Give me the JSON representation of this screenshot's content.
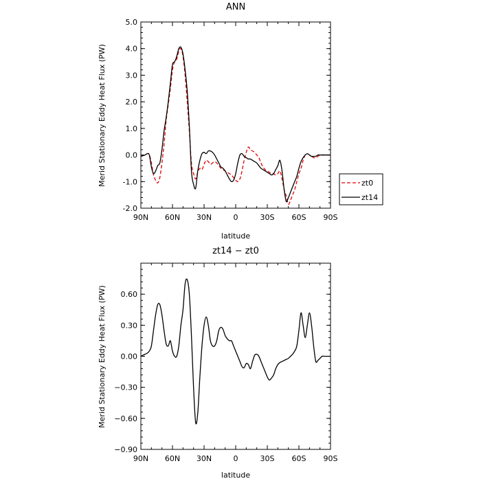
{
  "chart_data": [
    {
      "type": "line",
      "title": "ANN",
      "xlabel": "latitude",
      "ylabel": "Merid Stationary Eddy Heat Flux (PW)",
      "xlim": [
        90,
        -90
      ],
      "ylim": [
        -2.0,
        5.0
      ],
      "xticks": [
        90,
        60,
        30,
        0,
        -30,
        -60,
        -90
      ],
      "xtick_labels": [
        "90N",
        "60N",
        "30N",
        "0",
        "30S",
        "60S",
        "90S"
      ],
      "yticks": [
        -2,
        -1,
        0,
        1,
        2,
        3,
        4,
        5
      ],
      "ytick_labels": [
        "-2.0",
        "-1.0",
        "0.0",
        "1.0",
        "2.0",
        "3.0",
        "4.0",
        "5.0"
      ],
      "legend": {
        "placement": "right",
        "entries": [
          "zt0",
          "zt14"
        ]
      },
      "series": [
        {
          "name": "zt0",
          "color": "#e00000",
          "dash": "dashed",
          "x": [
            90,
            86,
            84,
            82,
            80,
            78,
            76,
            74,
            72,
            70,
            68,
            66,
            64,
            62,
            60,
            58,
            56,
            54,
            52,
            50,
            48,
            46,
            44,
            42,
            40,
            38,
            36,
            34,
            32,
            30,
            28,
            26,
            24,
            22,
            20,
            18,
            16,
            14,
            12,
            10,
            8,
            6,
            4,
            2,
            0,
            -2,
            -4,
            -6,
            -8,
            -10,
            -12,
            -14,
            -16,
            -18,
            -20,
            -22,
            -24,
            -26,
            -28,
            -30,
            -32,
            -34,
            -36,
            -38,
            -40,
            -42,
            -44,
            -46,
            -48,
            -50,
            -52,
            -54,
            -56,
            -58,
            -60,
            -62,
            -64,
            -66,
            -68,
            -70,
            -72,
            -74,
            -76,
            -78,
            -80,
            -82,
            -84,
            -86,
            -88,
            -90
          ],
          "y": [
            -0.05,
            0.0,
            0.05,
            0.02,
            -0.3,
            -0.75,
            -0.95,
            -1.05,
            -0.85,
            -0.3,
            0.4,
            1.3,
            1.9,
            2.5,
            3.2,
            3.5,
            3.6,
            3.9,
            4.0,
            3.7,
            3.0,
            2.0,
            0.9,
            -0.3,
            -0.7,
            -0.9,
            -0.65,
            -0.5,
            -0.55,
            -0.35,
            -0.2,
            -0.25,
            -0.35,
            -0.3,
            -0.25,
            -0.3,
            -0.4,
            -0.5,
            -0.55,
            -0.6,
            -0.65,
            -0.7,
            -0.75,
            -0.85,
            -0.95,
            -1.0,
            -0.9,
            -0.6,
            -0.2,
            0.1,
            0.3,
            0.2,
            0.15,
            0.1,
            0.0,
            -0.1,
            -0.3,
            -0.45,
            -0.55,
            -0.6,
            -0.65,
            -0.7,
            -0.7,
            -0.75,
            -0.7,
            -0.6,
            -0.9,
            -1.3,
            -1.55,
            -1.85,
            -1.7,
            -1.5,
            -1.3,
            -1.0,
            -0.7,
            -0.5,
            -0.2,
            0.0,
            0.05,
            0.0,
            -0.05,
            -0.1,
            -0.1,
            -0.05,
            0.0,
            0.0,
            0.0,
            0.0,
            0.0,
            0.0
          ]
        },
        {
          "name": "zt14",
          "color": "#000000",
          "dash": "solid",
          "x": [
            90,
            86,
            84,
            82,
            80,
            78,
            76,
            74,
            72,
            70,
            68,
            66,
            64,
            62,
            60,
            58,
            56,
            54,
            52,
            50,
            48,
            46,
            44,
            42,
            40,
            38,
            36,
            34,
            32,
            30,
            28,
            26,
            24,
            22,
            20,
            18,
            16,
            14,
            12,
            10,
            8,
            6,
            4,
            2,
            0,
            -2,
            -4,
            -6,
            -8,
            -10,
            -12,
            -14,
            -16,
            -18,
            -20,
            -22,
            -24,
            -26,
            -28,
            -30,
            -32,
            -34,
            -36,
            -38,
            -40,
            -42,
            -44,
            -46,
            -48,
            -50,
            -52,
            -54,
            -56,
            -58,
            -60,
            -62,
            -64,
            -66,
            -68,
            -70,
            -72,
            -74,
            -76,
            -78,
            -80,
            -82,
            -84,
            -86,
            -88,
            -90
          ],
          "y": [
            -0.05,
            0.0,
            0.05,
            0.0,
            -0.45,
            -0.7,
            -0.6,
            -0.4,
            -0.3,
            0.2,
            0.9,
            1.4,
            2.0,
            2.7,
            3.4,
            3.5,
            3.7,
            4.0,
            4.05,
            3.8,
            3.2,
            2.4,
            1.1,
            -0.6,
            -1.1,
            -1.25,
            -0.6,
            -0.2,
            0.05,
            0.1,
            0.05,
            0.15,
            0.15,
            0.1,
            0.0,
            -0.15,
            -0.3,
            -0.45,
            -0.5,
            -0.6,
            -0.75,
            -0.9,
            -1.0,
            -0.95,
            -0.7,
            -0.3,
            0.0,
            0.05,
            -0.05,
            -0.1,
            -0.15,
            -0.15,
            -0.2,
            -0.25,
            -0.3,
            -0.4,
            -0.5,
            -0.55,
            -0.6,
            -0.65,
            -0.7,
            -0.75,
            -0.7,
            -0.55,
            -0.4,
            -0.2,
            -0.6,
            -1.3,
            -1.75,
            -1.6,
            -1.4,
            -1.2,
            -1.0,
            -0.8,
            -0.5,
            -0.25,
            -0.1,
            0.0,
            0.05,
            0.0,
            -0.05,
            -0.05,
            -0.05,
            0.0,
            0.0,
            0.0,
            0.0,
            0.0,
            0.0,
            0.0
          ]
        }
      ]
    },
    {
      "type": "line",
      "title": "zt14 − zt0",
      "xlabel": "latitude",
      "ylabel": "Merid Stationary Eddy Heat Flux (PW)",
      "xlim": [
        90,
        -90
      ],
      "ylim": [
        -0.9,
        0.9
      ],
      "xticks": [
        90,
        60,
        30,
        0,
        -30,
        -60,
        -90
      ],
      "xtick_labels": [
        "90N",
        "60N",
        "30N",
        "0",
        "30S",
        "60S",
        "90S"
      ],
      "yticks": [
        -0.9,
        -0.6,
        -0.3,
        0.0,
        0.3,
        0.6
      ],
      "ytick_labels": [
        "−0.90",
        "−0.60",
        "−0.30",
        "0.00",
        "0.30",
        "0.60"
      ],
      "series": [
        {
          "color": "#000000",
          "dash": "solid",
          "x": [
            90,
            88,
            86,
            84,
            82,
            80,
            78,
            76,
            74,
            72,
            70,
            68,
            66,
            64,
            62,
            60,
            58,
            56,
            54,
            52,
            50,
            48,
            46,
            44,
            42,
            40,
            38,
            36,
            34,
            32,
            30,
            28,
            26,
            24,
            22,
            20,
            18,
            16,
            14,
            12,
            10,
            8,
            6,
            4,
            2,
            0,
            -2,
            -4,
            -6,
            -8,
            -10,
            -12,
            -14,
            -16,
            -18,
            -20,
            -22,
            -24,
            -26,
            -28,
            -30,
            -32,
            -34,
            -36,
            -38,
            -40,
            -42,
            -44,
            -46,
            -48,
            -50,
            -52,
            -54,
            -56,
            -58,
            -60,
            -62,
            -64,
            -66,
            -68,
            -70,
            -72,
            -74,
            -76,
            -78,
            -80,
            -82,
            -84,
            -86,
            -88,
            -90
          ],
          "y": [
            0.0,
            0.01,
            0.02,
            0.03,
            0.05,
            0.1,
            0.25,
            0.4,
            0.5,
            0.5,
            0.4,
            0.25,
            0.12,
            0.1,
            0.15,
            0.05,
            0.0,
            0.0,
            0.1,
            0.3,
            0.45,
            0.7,
            0.74,
            0.6,
            0.2,
            -0.3,
            -0.64,
            -0.55,
            -0.2,
            0.1,
            0.3,
            0.38,
            0.3,
            0.15,
            0.1,
            0.1,
            0.15,
            0.25,
            0.28,
            0.26,
            0.2,
            0.17,
            0.15,
            0.15,
            0.1,
            0.05,
            0.0,
            -0.05,
            -0.1,
            -0.11,
            -0.07,
            -0.08,
            -0.12,
            -0.05,
            0.01,
            0.02,
            0.0,
            -0.05,
            -0.1,
            -0.15,
            -0.2,
            -0.23,
            -0.21,
            -0.18,
            -0.12,
            -0.08,
            -0.06,
            -0.05,
            -0.04,
            -0.03,
            -0.02,
            0.0,
            0.02,
            0.05,
            0.1,
            0.25,
            0.42,
            0.3,
            0.18,
            0.3,
            0.42,
            0.3,
            0.1,
            -0.05,
            -0.04,
            -0.02,
            0.0,
            0.0,
            0.0,
            0.0,
            0.0
          ]
        }
      ]
    }
  ]
}
